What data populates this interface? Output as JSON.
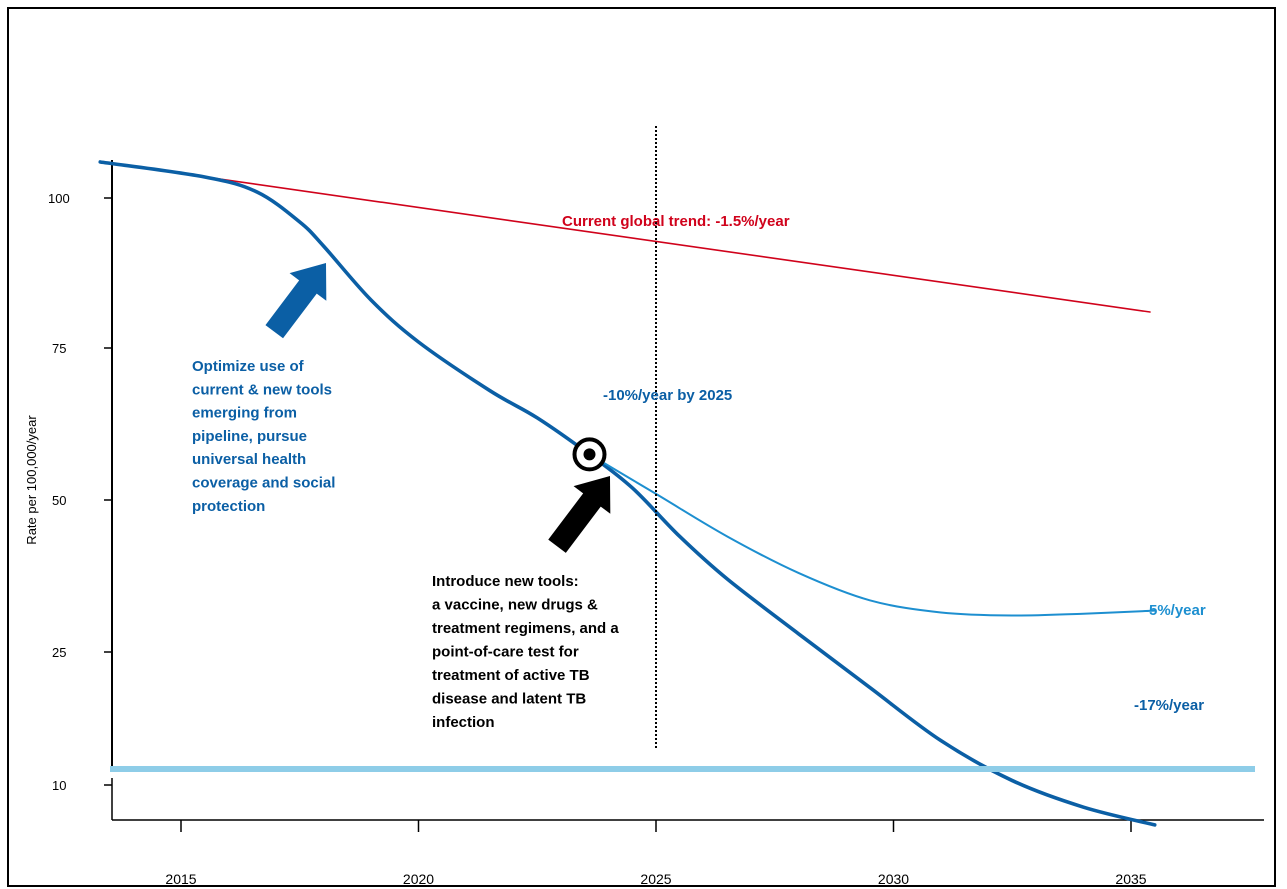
{
  "chart_data": {
    "type": "line",
    "title": "",
    "xlabel": "",
    "ylabel": "Rate per 100,000/year",
    "xlim": [
      2012.5,
      2037.6
    ],
    "x_ticks": [
      2015,
      2020,
      2025,
      2030,
      2035
    ],
    "y_ticks": [
      {
        "value": 100,
        "label": "100"
      },
      {
        "value": 75,
        "label": "75"
      },
      {
        "value": 50,
        "label": "50"
      },
      {
        "value": 25,
        "label": "25"
      },
      {
        "value": 10,
        "label": "10"
      }
    ],
    "grid": false,
    "series": [
      {
        "name": "Current global trend: -1.5%/year",
        "color": "#d0021b",
        "points": [
          [
            2013.3,
            106
          ],
          [
            2035.4,
            81
          ]
        ]
      },
      {
        "name": "-17%/year",
        "color": "#0b5fa5",
        "points": [
          [
            2013.3,
            106
          ],
          [
            2015.5,
            103.5
          ],
          [
            2016.6,
            101
          ],
          [
            2017.5,
            96
          ],
          [
            2018,
            92
          ],
          [
            2019,
            83
          ],
          [
            2020,
            76
          ],
          [
            2021.5,
            68
          ],
          [
            2022.5,
            63.5
          ],
          [
            2023.6,
            57.5
          ],
          [
            2024.5,
            52
          ],
          [
            2025.5,
            44
          ],
          [
            2026.5,
            37
          ],
          [
            2028,
            28
          ],
          [
            2029.5,
            21
          ],
          [
            2031,
            15
          ],
          [
            2032.5,
            10.5
          ],
          [
            2034,
            7.5
          ],
          [
            2035.5,
            5.5
          ]
        ]
      },
      {
        "name": "-5%/year",
        "color": "#1d8fd0",
        "points": [
          [
            2023.6,
            57.5
          ],
          [
            2025,
            51
          ],
          [
            2026.5,
            44
          ],
          [
            2028,
            38
          ],
          [
            2029.5,
            33.5
          ],
          [
            2031,
            31.5
          ],
          [
            2032.5,
            31
          ],
          [
            2034,
            31.3
          ],
          [
            2035.5,
            31.8
          ]
        ]
      }
    ],
    "target": {
      "x": 2023.6,
      "y": 57.5
    },
    "vline_x": 2025,
    "annotations": [
      {
        "id": "trend",
        "text": "Current global trend: -1.5%/year",
        "color": "#d0021b"
      },
      {
        "id": "by2025",
        "text": "-10%/year by 2025",
        "color": "#0b5fa5"
      },
      {
        "id": "five",
        "text": "-5%/year",
        "color": "#1d8fd0"
      },
      {
        "id": "seventeen",
        "text": "-17%/year",
        "color": "#0b5fa5"
      },
      {
        "id": "optimize",
        "lines": [
          "Optimize use of",
          "current & new tools",
          "emerging from",
          "pipeline, pursue",
          "universal health",
          "coverage and social",
          "protection"
        ],
        "color": "#0b5fa5"
      },
      {
        "id": "introduce",
        "lines": [
          "Introduce new tools:",
          "a vaccine, new drugs &",
          "treatment regimens, and a",
          "point-of-care test for",
          "treatment of active TB",
          "disease and latent TB",
          "infection"
        ],
        "color": "#000000"
      }
    ],
    "colors": {
      "baseline": "#8ecde8",
      "axis": "#000000",
      "arrow_blue": "#0b5fa5",
      "arrow_black": "#000000"
    }
  }
}
